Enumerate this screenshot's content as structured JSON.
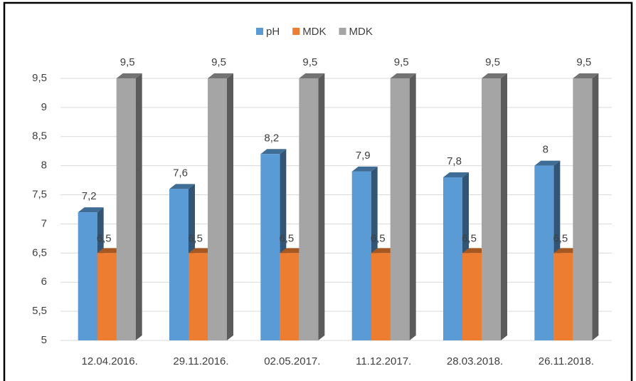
{
  "chart_data": {
    "type": "bar3d",
    "categories": [
      "12.04.2016.",
      "29.11.2016.",
      "02.05.2017.",
      "11.12.2017.",
      "28.03.2018.",
      "26.11.2018."
    ],
    "series": [
      {
        "name": "pH",
        "color": "#5b9bd5",
        "values": [
          7.2,
          7.6,
          8.2,
          7.9,
          7.8,
          8
        ],
        "value_labels": [
          "7,2",
          "7,6",
          "8,2",
          "7,9",
          "7,8",
          "8"
        ]
      },
      {
        "name": "MDK",
        "color": "#ed7d31",
        "values": [
          6.5,
          6.5,
          6.5,
          6.5,
          6.5,
          6.5
        ],
        "value_labels": [
          "6,5",
          "6,5",
          "6,5",
          "6,5",
          "6,5",
          "6,5"
        ]
      },
      {
        "name": "MDK",
        "color": "#a5a5a5",
        "values": [
          9.5,
          9.5,
          9.5,
          9.5,
          9.5,
          9.5
        ],
        "value_labels": [
          "9,5",
          "9,5",
          "9,5",
          "9,5",
          "9,5",
          "9,5"
        ]
      }
    ],
    "ylim": [
      5,
      9.5
    ],
    "yticks": [
      5,
      {
        "value": 5.5,
        "label": "5,5"
      },
      6,
      {
        "value": 6.5,
        "label": "6,5"
      },
      7,
      {
        "value": 7.5,
        "label": "7,5"
      },
      8,
      {
        "value": 8.5,
        "label": "8,5"
      },
      9,
      {
        "value": 9.5,
        "label": "9,5"
      }
    ],
    "grid": true,
    "legend": "top"
  }
}
